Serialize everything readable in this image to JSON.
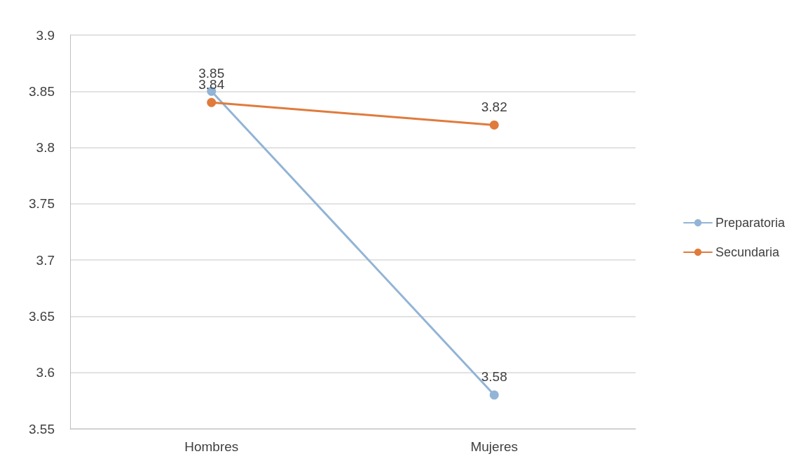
{
  "chart_data": {
    "type": "line",
    "categories": [
      "Hombres",
      "Mujeres"
    ],
    "series": [
      {
        "name": "Preparatoria",
        "color": "#92b4d6",
        "values": [
          3.85,
          3.58
        ]
      },
      {
        "name": "Secundaria",
        "color": "#e07b3c",
        "values": [
          3.84,
          3.82
        ]
      }
    ],
    "ylim": [
      3.55,
      3.9
    ],
    "yticks": [
      3.55,
      3.6,
      3.65,
      3.7,
      3.75,
      3.8,
      3.85,
      3.9
    ],
    "grid": "y",
    "legend": "right",
    "marker": "circle",
    "line_style": "solid",
    "data_labels": true
  }
}
